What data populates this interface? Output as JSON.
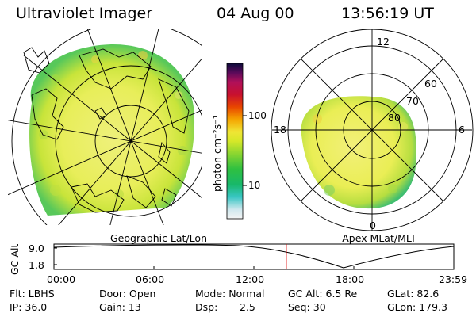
{
  "header": {
    "title": "Ultraviolet Imager",
    "date": "04 Aug 00",
    "time": "13:56:19 UT"
  },
  "colorbar": {
    "label": "photon cm⁻²s⁻¹",
    "tick_100": "100",
    "tick_10": "10",
    "colors": [
      "#f4f4f4",
      "#cfe8ee",
      "#39c6c4",
      "#18b86a",
      "#2fc040",
      "#8cd630",
      "#d6e829",
      "#f0e535",
      "#f5a300",
      "#e84500",
      "#c8102e",
      "#b0105a",
      "#5a0a5a",
      "#0b0b3a"
    ]
  },
  "left_panel": {
    "caption": "Geographic Lat/Lon"
  },
  "right_panel": {
    "caption": "Apex MLat/MLT",
    "mlt_12": "12",
    "mlt_18": "18",
    "mlt_6": "6",
    "mlt_0": "0",
    "lat_60": "60",
    "lat_70": "70",
    "lat_80": "80"
  },
  "timeline": {
    "ylabel": "GC Alt",
    "ytick_high": "9.0",
    "ytick_low": "1.8",
    "xticks": [
      "00:00",
      "06:00",
      "12:00",
      "18:00",
      "23:59"
    ],
    "marker_hour": 13.94
  },
  "info": {
    "flt": "Flt: LBHS",
    "door": "Door: Open",
    "mode": "Mode: Normal",
    "gcalt": "GC Alt: 6.5 Re",
    "glat": "GLat: 82.6",
    "ip": "IP: 36.0",
    "gain": "Gain: 13",
    "dsp_label": "Dsp:",
    "dsp_value": "2.5",
    "seq": "Seq: 30",
    "glon": "GLon: 179.3"
  }
}
